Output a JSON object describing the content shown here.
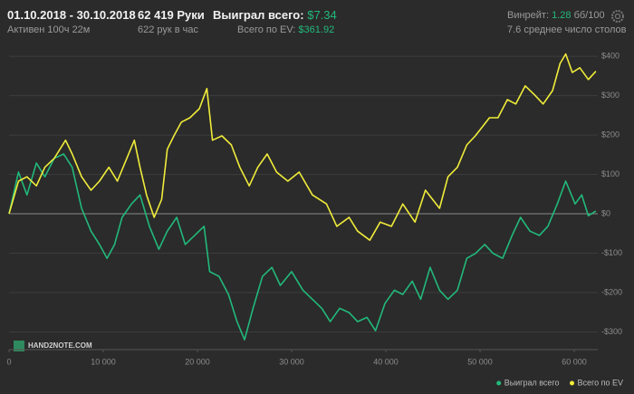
{
  "header": {
    "date_range": "01.10.2018 - 30.10.2018",
    "active": "Активен 100ч 22м",
    "hands": "62 419 Руки",
    "hands_per_hour": "622 рук в час",
    "won_label": "Выиграл всего:",
    "won_value": "$7.34",
    "ev_label": "Всего по EV:",
    "ev_value": "$361.92",
    "winrate_label": "Винрейт:",
    "winrate_value": "1.28",
    "winrate_unit": "бб/100",
    "tables": "7.6 среднее число столов"
  },
  "logo": "HAND2NOTE.COM",
  "chart_data": {
    "type": "line",
    "xlim": [
      0,
      62500
    ],
    "ylim": [
      -345,
      428
    ],
    "xticks": [
      0,
      {
        "value": 10000,
        "label": "10 000"
      },
      {
        "value": 20000,
        "label": "20 000"
      },
      {
        "value": 30000,
        "label": "30 000"
      },
      {
        "value": 40000,
        "label": "40 000"
      },
      {
        "value": 50000,
        "label": "50 000"
      },
      {
        "value": 60000,
        "label": "60 000"
      }
    ],
    "yticks": [
      {
        "value": -300,
        "label": "-$300"
      },
      {
        "value": -200,
        "label": "-$200"
      },
      {
        "value": -100,
        "label": "-$100"
      },
      {
        "value": 0,
        "label": "$0"
      },
      {
        "value": 100,
        "label": "$100"
      },
      {
        "value": 200,
        "label": "$200"
      },
      {
        "value": 300,
        "label": "$300"
      },
      {
        "value": 400,
        "label": "$400"
      }
    ],
    "grid": true,
    "legend": "bottom-right",
    "series": [
      {
        "name": "Выиграл всего",
        "color": "#22b97b",
        "x": [
          0,
          1000,
          1900,
          2900,
          3800,
          4800,
          5800,
          6700,
          7700,
          8700,
          9600,
          10400,
          11200,
          12000,
          13000,
          13900,
          14900,
          15900,
          16800,
          17800,
          18700,
          19700,
          20700,
          21300,
          22300,
          23300,
          24200,
          25000,
          25900,
          26900,
          27900,
          28800,
          30000,
          31200,
          32200,
          33200,
          34100,
          35100,
          36100,
          37000,
          38000,
          38900,
          39900,
          40900,
          41800,
          42800,
          43700,
          44700,
          45700,
          46600,
          47600,
          48600,
          49500,
          50500,
          51400,
          52400,
          53400,
          54300,
          55300,
          56300,
          57200,
          58200,
          59100,
          60100,
          60800,
          61500,
          62300
        ],
        "values": [
          0,
          106,
          48,
          129,
          94,
          141,
          152,
          118,
          14,
          -44,
          -78,
          -113,
          -78,
          -9,
          25,
          48,
          -32,
          -90,
          -44,
          -9,
          -78,
          -55,
          -32,
          -147,
          -159,
          -205,
          -274,
          -320,
          -240,
          -159,
          -136,
          -182,
          -147,
          -194,
          -217,
          -240,
          -274,
          -240,
          -251,
          -274,
          -263,
          -297,
          -228,
          -194,
          -205,
          -171,
          -217,
          -136,
          -194,
          -217,
          -194,
          -113,
          -101,
          -78,
          -101,
          -113,
          -55,
          -9,
          -44,
          -55,
          -32,
          25,
          83,
          25,
          48,
          -5,
          7
        ]
      },
      {
        "name": "Всего по EV",
        "color": "#f0ec3a",
        "x": [
          0,
          1000,
          1900,
          2900,
          3800,
          4800,
          6000,
          6700,
          7700,
          8700,
          9600,
          10600,
          11500,
          12500,
          13300,
          13900,
          14600,
          15400,
          16200,
          16800,
          17500,
          18300,
          19200,
          20200,
          21000,
          21600,
          22600,
          23600,
          24500,
          25500,
          26400,
          27400,
          28400,
          29600,
          30800,
          32200,
          33700,
          34800,
          36100,
          37000,
          38300,
          39400,
          40600,
          41800,
          43100,
          44200,
          45700,
          46600,
          47600,
          48600,
          49500,
          51000,
          51900,
          52900,
          53800,
          54800,
          55800,
          56700,
          57700,
          58500,
          59100,
          59800,
          60600,
          61500,
          62300
        ],
        "values": [
          0,
          83,
          94,
          71,
          118,
          141,
          187,
          152,
          94,
          60,
          83,
          118,
          83,
          141,
          187,
          118,
          48,
          -9,
          37,
          164,
          198,
          233,
          244,
          267,
          318,
          187,
          198,
          175,
          118,
          71,
          118,
          152,
          106,
          83,
          106,
          48,
          25,
          -32,
          -9,
          -44,
          -67,
          -21,
          -32,
          25,
          -21,
          60,
          14,
          94,
          118,
          175,
          198,
          244,
          244,
          290,
          279,
          325,
          302,
          279,
          313,
          382,
          406,
          359,
          371,
          341,
          362
        ]
      }
    ]
  }
}
